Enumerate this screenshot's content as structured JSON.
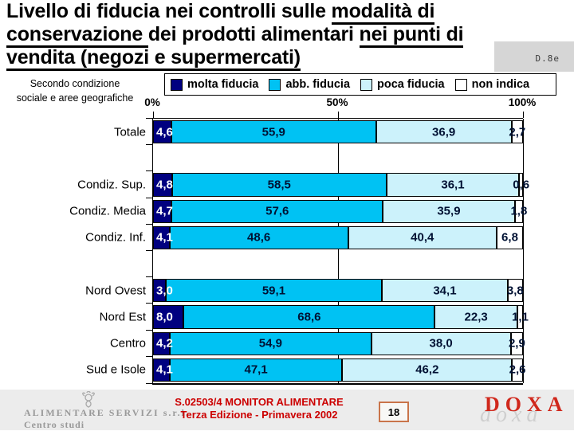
{
  "slide": {
    "title_segments": [
      {
        "text": "Livello di fiducia nei controlli sulle ",
        "underline": false
      },
      {
        "text": "modalità di",
        "underline": true
      },
      {
        "br": true
      },
      {
        "text": "conservazione ",
        "underline": true
      },
      {
        "text": "dei prodotti alimentari ",
        "underline": false
      },
      {
        "text": "nei punti di",
        "underline": true
      },
      {
        "br": true
      },
      {
        "text": "vendita (negozi e supermercati)",
        "underline": true
      }
    ],
    "question_ref": "D.8e",
    "subtitle_line1": "Secondo condizione",
    "subtitle_line2": "sociale e aree geografiche"
  },
  "chart_data": {
    "type": "bar",
    "orientation": "horizontal-stacked",
    "x_axis": {
      "ticks": [
        "0%",
        "50%",
        "100%"
      ],
      "range": [
        0,
        100
      ],
      "gridlines_at": [
        50,
        100
      ]
    },
    "legend_position": "top",
    "legend": [
      {
        "label": "molta fiducia",
        "color": "#000080",
        "text_color": "#ffffff"
      },
      {
        "label": "abb. fiducia",
        "color": "#00c2f3",
        "text_color": "#001133"
      },
      {
        "label": "poca fiducia",
        "color": "#ccf2fb",
        "text_color": "#001133"
      },
      {
        "label": "non indica",
        "color": "#ffffff",
        "text_color": "#001133"
      }
    ],
    "rows": [
      {
        "label": "Totale",
        "values": [
          4.6,
          55.9,
          36.9,
          2.7
        ],
        "display": [
          "4,6",
          "55,9",
          "36,9",
          "2,7"
        ]
      },
      {
        "gap": true
      },
      {
        "label": "Condiz. Sup.",
        "values": [
          4.8,
          58.5,
          36.1,
          0.6
        ],
        "display": [
          "4,8",
          "58,5",
          "36,1",
          "0,6"
        ]
      },
      {
        "label": "Condiz. Media",
        "values": [
          4.7,
          57.6,
          35.9,
          1.8
        ],
        "display": [
          "4,7",
          "57,6",
          "35,9",
          "1,8"
        ]
      },
      {
        "label": "Condiz. Inf.",
        "values": [
          4.1,
          48.6,
          40.4,
          6.8
        ],
        "display": [
          "4,1",
          "48,6",
          "40,4",
          "6,8"
        ]
      },
      {
        "gap": true
      },
      {
        "label": "Nord Ovest",
        "values": [
          3.0,
          59.1,
          34.1,
          3.8
        ],
        "display": [
          "3,0",
          "59,1",
          "34,1",
          "3,8"
        ]
      },
      {
        "label": "Nord Est",
        "values": [
          8.0,
          68.6,
          22.3,
          1.1
        ],
        "display": [
          "8,0",
          "68,6",
          "22,3",
          "1,1"
        ]
      },
      {
        "label": "Centro",
        "values": [
          4.2,
          54.9,
          38.0,
          2.9
        ],
        "display": [
          "4,2",
          "54,9",
          "38,0",
          "2,9"
        ]
      },
      {
        "label": "Sud e Isole",
        "values": [
          4.1,
          47.1,
          46.2,
          2.6
        ],
        "display": [
          "4,1",
          "47,1",
          "46,2",
          "2,6"
        ]
      }
    ]
  },
  "footer": {
    "org_name": "ALIMENTARE SERVIZI s.r.l.",
    "org_sub": "Centro studi",
    "study_line1": "S.02503/4 MONITOR ALIMENTARE",
    "study_line2": "Terza Edizione - Primavera 2002",
    "page_number": "18",
    "logo_text": "DOXA",
    "logo_watermark": "doxa",
    "colors": {
      "study_text": "#cc0000",
      "logo_red": "#d0281c",
      "page_border": "#c9744a",
      "band_bg": "#ececec"
    }
  }
}
